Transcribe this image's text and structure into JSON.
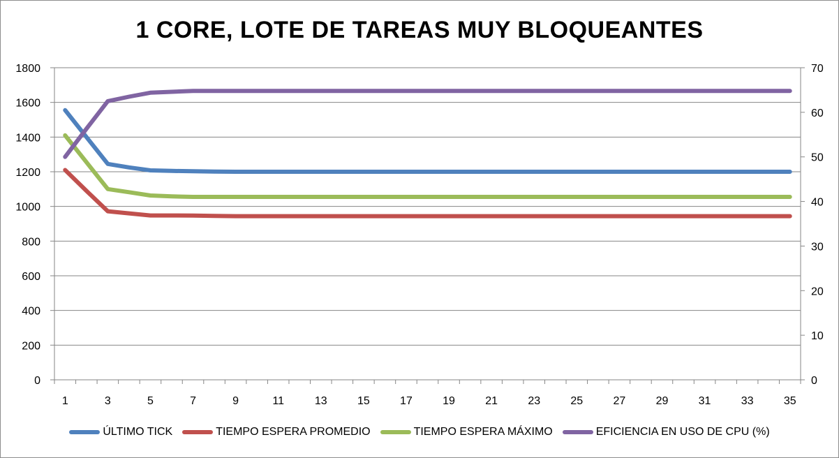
{
  "chart_data": {
    "type": "line",
    "title": "1 CORE, LOTE DE TAREAS MUY BLOQUEANTES",
    "x": [
      1,
      2,
      3,
      4,
      5,
      6,
      7,
      8,
      9,
      10,
      11,
      12,
      13,
      14,
      15,
      16,
      17,
      18,
      19,
      20,
      21,
      22,
      23,
      24,
      25,
      26,
      27,
      28,
      29,
      30,
      31,
      32,
      33,
      34,
      35
    ],
    "x_tick_labels": [
      "1",
      "3",
      "5",
      "7",
      "9",
      "11",
      "13",
      "15",
      "17",
      "19",
      "21",
      "23",
      "25",
      "27",
      "29",
      "31",
      "33",
      "35"
    ],
    "y_left": {
      "min": 0,
      "max": 1800,
      "step": 200,
      "tick_labels": [
        "0",
        "200",
        "400",
        "600",
        "800",
        "1000",
        "1200",
        "1400",
        "1600",
        "1800"
      ]
    },
    "y_right": {
      "min": 0,
      "max": 70,
      "step": 10,
      "tick_labels": [
        "0",
        "10",
        "20",
        "30",
        "40",
        "50",
        "60",
        "70"
      ]
    },
    "grid": "horizontal",
    "legend_position": "bottom",
    "series": [
      {
        "name": "ÚLTIMO TICK",
        "axis": "left",
        "color": "#4f81bd",
        "values": [
          1555,
          1400,
          1245,
          1225,
          1208,
          1205,
          1203,
          1201,
          1200,
          1200,
          1200,
          1200,
          1200,
          1200,
          1200,
          1200,
          1200,
          1200,
          1200,
          1200,
          1200,
          1200,
          1200,
          1200,
          1200,
          1200,
          1200,
          1200,
          1200,
          1200,
          1200,
          1200,
          1200,
          1200,
          1200
        ]
      },
      {
        "name": "TIEMPO ESPERA PROMEDIO",
        "axis": "left",
        "color": "#c0504d",
        "values": [
          1210,
          1090,
          972,
          960,
          948,
          948,
          947,
          945,
          944,
          944,
          944,
          944,
          944,
          944,
          944,
          944,
          944,
          944,
          944,
          944,
          944,
          944,
          944,
          944,
          944,
          944,
          944,
          944,
          944,
          944,
          944,
          944,
          944,
          944,
          944
        ]
      },
      {
        "name": "TIEMPO ESPERA MÁXIMO",
        "axis": "left",
        "color": "#9bbb59",
        "values": [
          1410,
          1255,
          1100,
          1082,
          1063,
          1058,
          1055,
          1055,
          1055,
          1055,
          1055,
          1055,
          1055,
          1055,
          1055,
          1055,
          1055,
          1055,
          1055,
          1055,
          1055,
          1055,
          1055,
          1055,
          1055,
          1055,
          1055,
          1055,
          1055,
          1055,
          1055,
          1055,
          1055,
          1055,
          1055
        ]
      },
      {
        "name": "EFICIENCIA EN USO DE CPU (%)",
        "axis": "right",
        "color": "#8064a2",
        "values": [
          50,
          56.3,
          62.5,
          63.5,
          64.4,
          64.6,
          64.8,
          64.8,
          64.8,
          64.8,
          64.8,
          64.8,
          64.8,
          64.8,
          64.8,
          64.8,
          64.8,
          64.8,
          64.8,
          64.8,
          64.8,
          64.8,
          64.8,
          64.8,
          64.8,
          64.8,
          64.8,
          64.8,
          64.8,
          64.8,
          64.8,
          64.8,
          64.8,
          64.8,
          64.8
        ]
      }
    ]
  }
}
